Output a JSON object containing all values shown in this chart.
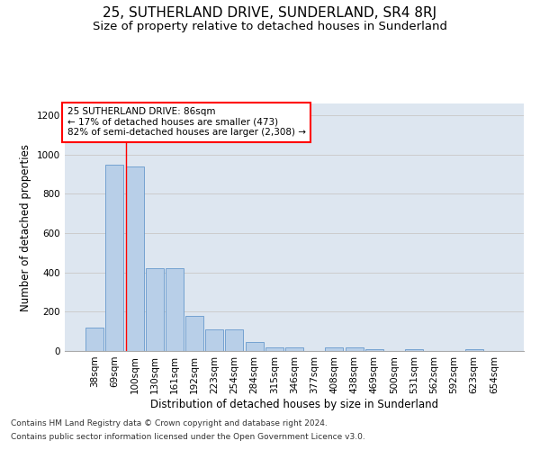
{
  "title": "25, SUTHERLAND DRIVE, SUNDERLAND, SR4 8RJ",
  "subtitle": "Size of property relative to detached houses in Sunderland",
  "xlabel": "Distribution of detached houses by size in Sunderland",
  "ylabel": "Number of detached properties",
  "categories": [
    "38sqm",
    "69sqm",
    "100sqm",
    "130sqm",
    "161sqm",
    "192sqm",
    "223sqm",
    "254sqm",
    "284sqm",
    "315sqm",
    "346sqm",
    "377sqm",
    "408sqm",
    "438sqm",
    "469sqm",
    "500sqm",
    "531sqm",
    "562sqm",
    "592sqm",
    "623sqm",
    "654sqm"
  ],
  "values": [
    120,
    950,
    940,
    420,
    420,
    180,
    110,
    110,
    45,
    20,
    20,
    0,
    20,
    20,
    10,
    0,
    10,
    0,
    0,
    10,
    0
  ],
  "bar_color": "#b8cfe8",
  "bar_edge_color": "#6699cc",
  "annotation_box_text": "25 SUTHERLAND DRIVE: 86sqm\n← 17% of detached houses are smaller (473)\n82% of semi-detached houses are larger (2,308) →",
  "annotation_box_color": "white",
  "annotation_box_edge_color": "red",
  "grid_color": "#cccccc",
  "background_color": "#dde6f0",
  "ylim": [
    0,
    1260
  ],
  "yticks": [
    0,
    200,
    400,
    600,
    800,
    1000,
    1200
  ],
  "footer_line1": "Contains HM Land Registry data © Crown copyright and database right 2024.",
  "footer_line2": "Contains public sector information licensed under the Open Government Licence v3.0.",
  "title_fontsize": 11,
  "subtitle_fontsize": 9.5,
  "axis_label_fontsize": 8.5,
  "tick_fontsize": 7.5,
  "annotation_fontsize": 7.5,
  "footer_fontsize": 6.5
}
